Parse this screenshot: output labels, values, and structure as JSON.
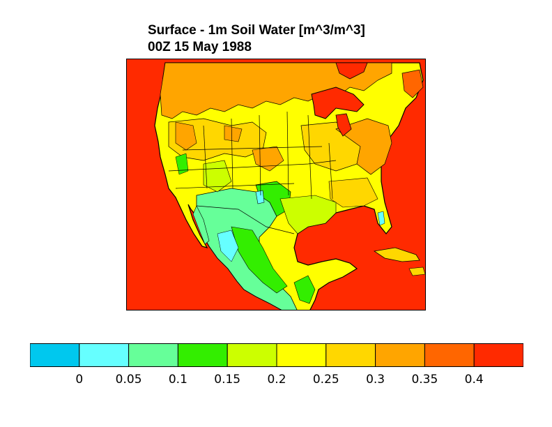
{
  "title": {
    "line1": "Surface - 1m Soil Water [m^3/m^3]",
    "line2": "00Z 15 May 1988"
  },
  "map": {
    "region": "North America",
    "background_color": "#ff2a00",
    "boundaries": [
      "coastlines",
      "national borders",
      "state/province borders"
    ]
  },
  "colorbar": {
    "colors": [
      "#00c8ee",
      "#66ffff",
      "#66ff99",
      "#33ee00",
      "#ccff00",
      "#ffff00",
      "#ffd700",
      "#ffa500",
      "#ff6600",
      "#ff2a00"
    ],
    "tick_labels": [
      "0",
      "0.05",
      "0.1",
      "0.15",
      "0.2",
      "0.25",
      "0.3",
      "0.35",
      "0.4"
    ]
  }
}
